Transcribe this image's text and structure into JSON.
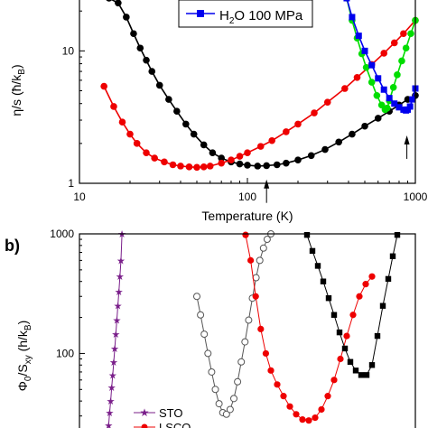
{
  "chart_data": [
    {
      "type": "scatter",
      "panel_label": "",
      "xlabel": "Temperature (K)",
      "ylabel": "η/s (ħ/k_B)",
      "ylabel_parts": [
        "η/s (ħ/k",
        "B",
        ")"
      ],
      "xscale": "log",
      "yscale": "log",
      "xlim": [
        10,
        1000
      ],
      "ylim": [
        1,
        25
      ],
      "xticks": [
        10,
        100,
        1000
      ],
      "xtick_labels": [
        "10",
        "100",
        "1000"
      ],
      "yticks": [
        1,
        10
      ],
      "ytick_labels": [
        "1",
        "10"
      ],
      "grid": false,
      "legend": {
        "placement": "top-center",
        "entries": [
          {
            "label_parts": [
              "H",
              "2",
              "O 100 MPa"
            ],
            "label": "H2O 100 MPa",
            "color": "#0000ee",
            "marker": "square"
          }
        ]
      },
      "arrows": [
        {
          "x": 130,
          "y": 1.07
        },
        {
          "x": 890,
          "y": 2.3
        }
      ],
      "series": [
        {
          "color": "#000000",
          "marker": "circle",
          "connected": true,
          "x": [
            15,
            17,
            19,
            21,
            23,
            25,
            27,
            30,
            34,
            38,
            43,
            48,
            55,
            62,
            70,
            80,
            90,
            100,
            115,
            130,
            150,
            170,
            200,
            240,
            290,
            350,
            420,
            500,
            600,
            700,
            800,
            900,
            1000
          ],
          "y": [
            25,
            23,
            18,
            13.5,
            10.5,
            8.5,
            7,
            5.5,
            4.3,
            3.5,
            2.8,
            2.35,
            1.95,
            1.7,
            1.55,
            1.45,
            1.4,
            1.37,
            1.35,
            1.36,
            1.38,
            1.42,
            1.5,
            1.62,
            1.8,
            2.05,
            2.35,
            2.7,
            3.1,
            3.5,
            3.9,
            4.3,
            4.6
          ]
        },
        {
          "color": "#ee0000",
          "marker": "circle",
          "connected": true,
          "x": [
            14,
            16,
            18,
            20,
            22,
            25,
            28,
            32,
            36,
            40,
            45,
            50,
            55,
            60,
            70,
            80,
            90,
            100,
            120,
            140,
            170,
            200,
            250,
            300,
            380,
            450,
            550,
            650,
            750,
            850,
            1000
          ],
          "y": [
            5.4,
            3.8,
            2.9,
            2.35,
            2.0,
            1.7,
            1.55,
            1.45,
            1.38,
            1.35,
            1.33,
            1.32,
            1.33,
            1.35,
            1.42,
            1.5,
            1.6,
            1.7,
            1.9,
            2.1,
            2.45,
            2.8,
            3.4,
            4.1,
            5.2,
            6.3,
            7.9,
            9.6,
            11.5,
            13.5,
            17
          ]
        },
        {
          "color": "#00dd00",
          "marker": "circle",
          "connected": true,
          "x": [
            390,
            420,
            450,
            480,
            510,
            550,
            590,
            630,
            660,
            680,
            700,
            740,
            780,
            830,
            880,
            940,
            1000
          ],
          "y": [
            25,
            17,
            12.5,
            9.5,
            7.5,
            5.8,
            4.6,
            3.9,
            3.6,
            3.7,
            4.2,
            5.3,
            6.6,
            8.4,
            10.5,
            13.5,
            17
          ]
        },
        {
          "label": "H2O 100 MPa",
          "color": "#0000ee",
          "marker": "square",
          "connected": true,
          "x": [
            390,
            420,
            460,
            500,
            550,
            600,
            650,
            700,
            750,
            800,
            850,
            880,
            900,
            930,
            960,
            1000
          ],
          "y": [
            25,
            18,
            13,
            10,
            7.8,
            6.2,
            5.1,
            4.4,
            4.0,
            3.75,
            3.6,
            3.55,
            3.6,
            3.8,
            4.3,
            5.2
          ]
        }
      ]
    },
    {
      "type": "scatter",
      "panel_label": "b)",
      "xlabel": "",
      "ylabel": "Φ0/Sxy (h/k_B)",
      "ylabel_parts": [
        "Φ",
        "0",
        "/S",
        "xy",
        " (h/k",
        "B",
        ")"
      ],
      "yscale": "log",
      "ylim": [
        20,
        1000
      ],
      "yticks": [
        100,
        1000
      ],
      "ytick_labels": [
        "100",
        "1000"
      ],
      "grid": false,
      "legend": {
        "placement": "bottom-left",
        "entries": [
          {
            "label": "STO",
            "color": "#7a1f8a",
            "marker": "star"
          },
          {
            "label": "LSCO",
            "color": "#ee0000",
            "marker": "circle"
          }
        ]
      },
      "series": [
        {
          "label": "STO",
          "color": "#7a1f8a",
          "marker": "star",
          "connected": true,
          "x": [
            0.02,
            0.04,
            0.06,
            0.08,
            0.1,
            0.12,
            0.14,
            0.16,
            0.18,
            0.2,
            0.22,
            0.24,
            0.26,
            0.28,
            0.3
          ],
          "y": [
            20,
            25,
            32,
            40,
            52,
            66,
            85,
            110,
            145,
            190,
            250,
            330,
            440,
            600,
            1000
          ]
        },
        {
          "color": "#555555",
          "marker": "open-circle",
          "connected": true,
          "x": [
            0.0,
            0.05,
            0.1,
            0.15,
            0.2,
            0.25,
            0.3,
            0.35,
            0.4,
            0.45,
            0.5,
            0.55,
            0.6,
            0.65,
            0.7,
            0.75,
            0.8,
            0.85,
            0.9,
            0.95,
            1.0
          ],
          "y": [
            300,
            210,
            145,
            100,
            70,
            50,
            38,
            32,
            31,
            34,
            42,
            58,
            85,
            125,
            190,
            290,
            430,
            600,
            760,
            900,
            1000
          ]
        },
        {
          "label": "LSCO",
          "color": "#ee0000",
          "marker": "circle",
          "connected": true,
          "x": [
            0.0,
            0.04,
            0.08,
            0.12,
            0.16,
            0.2,
            0.25,
            0.3,
            0.35,
            0.4,
            0.45,
            0.5,
            0.55,
            0.6,
            0.65,
            0.7,
            0.75,
            0.8,
            0.85,
            0.9,
            0.95,
            1.0
          ],
          "y": [
            980,
            600,
            300,
            160,
            100,
            72,
            55,
            44,
            36,
            31,
            28,
            27.5,
            29,
            34,
            44,
            60,
            90,
            140,
            210,
            300,
            380,
            440
          ]
        },
        {
          "color": "#000000",
          "marker": "square",
          "connected": true,
          "x": [
            0.0,
            0.06,
            0.12,
            0.18,
            0.24,
            0.3,
            0.36,
            0.42,
            0.48,
            0.54,
            0.6,
            0.66,
            0.72,
            0.78,
            0.84,
            0.9,
            0.95,
            1.0
          ],
          "y": [
            980,
            720,
            540,
            400,
            290,
            210,
            150,
            110,
            85,
            72,
            66,
            66,
            80,
            140,
            250,
            420,
            650,
            980
          ]
        }
      ]
    }
  ]
}
